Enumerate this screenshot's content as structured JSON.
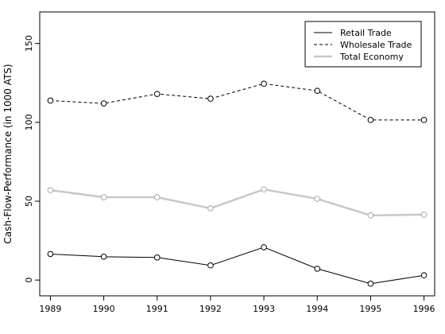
{
  "chart_data": {
    "type": "line",
    "title": "",
    "xlabel": "",
    "ylabel": "Cash-Flow-Performance (in 1000 ATS)",
    "x": [
      1989,
      1990,
      1991,
      1992,
      1993,
      1994,
      1995,
      1996
    ],
    "x_ticks": [
      "1989",
      "1990",
      "1991",
      "1992",
      "1993",
      "1994",
      "1995",
      "1996"
    ],
    "y_ticks": [
      "0",
      "50",
      "100",
      "150"
    ],
    "xlim": [
      1988.8,
      1996.2
    ],
    "ylim": [
      -10,
      170
    ],
    "grid": false,
    "legend_position": "top-right",
    "series": [
      {
        "name": "Retail Trade",
        "style": "solid",
        "color": "#000000",
        "values": [
          16.5,
          14.8,
          14.3,
          9.3,
          20.8,
          7.2,
          -2.3,
          3.0
        ]
      },
      {
        "name": "Wholesale Trade",
        "style": "dashed",
        "color": "#000000",
        "values": [
          113.8,
          112.0,
          118.0,
          115.0,
          124.5,
          120.0,
          101.5,
          101.5
        ]
      },
      {
        "name": "Total Economy",
        "style": "solid-thick",
        "color": "#c8c8c8",
        "values": [
          57.0,
          52.5,
          52.5,
          45.5,
          57.5,
          51.5,
          41.0,
          41.5
        ]
      }
    ]
  }
}
